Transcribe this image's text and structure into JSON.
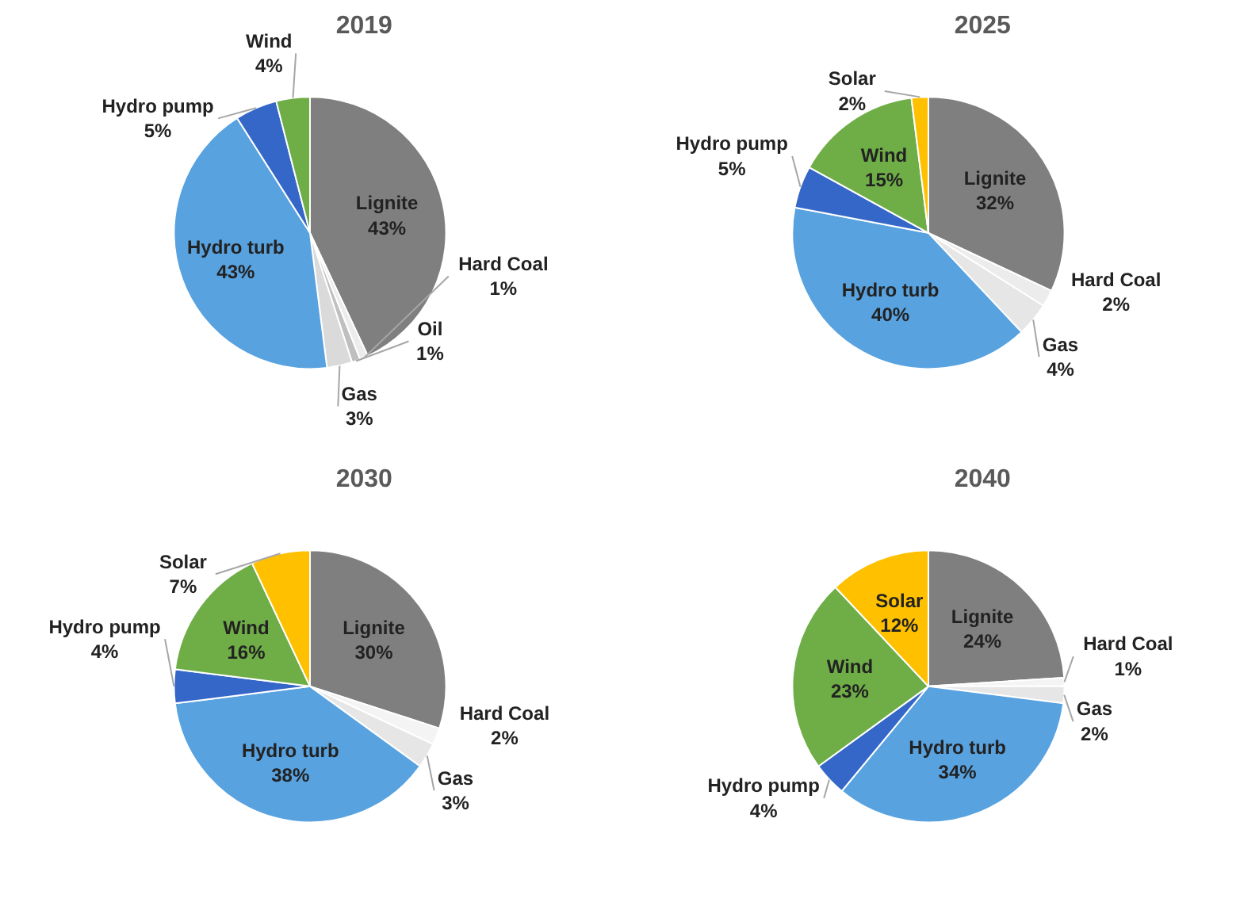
{
  "chart_data": [
    {
      "type": "pie",
      "title": "2019",
      "categories": [
        "Lignite",
        "Hard Coal",
        "Oil",
        "Gas",
        "Hydro turb",
        "Hydro pump",
        "Wind"
      ],
      "values": [
        43,
        1,
        1,
        3,
        43,
        5,
        4
      ],
      "value_labels": [
        "43%",
        "1%",
        "1%",
        "3%",
        "43%",
        "5%",
        "4%"
      ],
      "colors": [
        "#7f7f7f",
        "#ececec",
        "#bfbfbf",
        "#dadada",
        "#58a2e0",
        "#3567c8",
        "#6fad47"
      ]
    },
    {
      "type": "pie",
      "title": "2025",
      "categories": [
        "Lignite",
        "Hard Coal",
        "Gas",
        "Hydro turb",
        "Hydro pump",
        "Wind",
        "Solar"
      ],
      "values": [
        32,
        2,
        4,
        40,
        5,
        15,
        2
      ],
      "value_labels": [
        "32%",
        "2%",
        "4%",
        "40%",
        "5%",
        "15%",
        "2%"
      ],
      "colors": [
        "#7f7f7f",
        "#ececec",
        "#e6e6e6",
        "#58a2e0",
        "#3567c8",
        "#6fad47",
        "#ffc000"
      ]
    },
    {
      "type": "pie",
      "title": "2030",
      "categories": [
        "Lignite",
        "Hard Coal",
        "Gas",
        "Hydro turb",
        "Hydro pump",
        "Wind",
        "Solar"
      ],
      "values": [
        30,
        2,
        3,
        38,
        4,
        16,
        7
      ],
      "value_labels": [
        "30%",
        "2%",
        "3%",
        "38%",
        "4%",
        "16%",
        "7%"
      ],
      "colors": [
        "#7f7f7f",
        "#f4f4f4",
        "#e6e6e6",
        "#58a2e0",
        "#3567c8",
        "#6fad47",
        "#ffc000"
      ]
    },
    {
      "type": "pie",
      "title": "2040",
      "categories": [
        "Lignite",
        "Hard Coal",
        "Gas",
        "Hydro turb",
        "Hydro pump",
        "Wind",
        "Solar"
      ],
      "values": [
        24,
        1,
        2,
        34,
        4,
        23,
        12
      ],
      "value_labels": [
        "24%",
        "1%",
        "2%",
        "34%",
        "4%",
        "23%",
        "12%"
      ],
      "colors": [
        "#7f7f7f",
        "#f4f4f4",
        "#e6e6e6",
        "#58a2e0",
        "#3567c8",
        "#6fad47",
        "#ffc000"
      ]
    }
  ]
}
